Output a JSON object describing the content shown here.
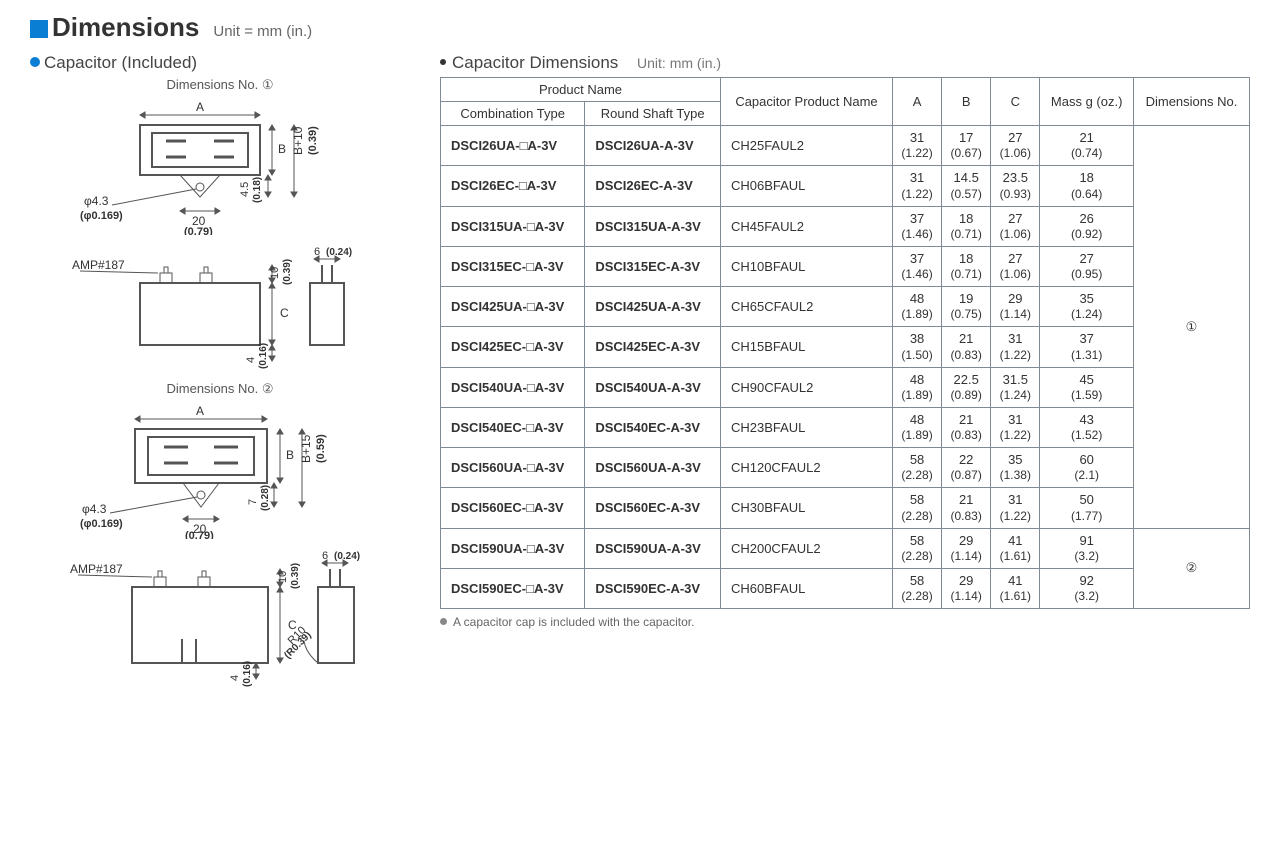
{
  "page": {
    "title": "Dimensions",
    "unit_label": "Unit = mm (in.)"
  },
  "left": {
    "heading": "Capacitor (Included)",
    "dim_label_1": "Dimensions No. ①",
    "dim_label_2": "Dimensions No. ②",
    "diagram1": {
      "A": "A",
      "B": "B",
      "Bplus": "B+10",
      "Bplus_in": "(0.39)",
      "phi": "φ4.3",
      "phi_in": "(φ0.169)",
      "twenty": "20",
      "twenty_in": "(0.79)",
      "four5": "4.5",
      "four5_in": "(0.18)"
    },
    "diagram_side": {
      "amp": "AMP#187",
      "ten": "10",
      "ten_in": "(0.39)",
      "six": "6",
      "six_in": "(0.24)",
      "C": "C",
      "four": "4",
      "four_in": "(0.16)"
    },
    "diagram2": {
      "A": "A",
      "B": "B",
      "Bplus": "B+15",
      "Bplus_in": "(0.59)",
      "phi": "φ4.3",
      "phi_in": "(φ0.169)",
      "twenty": "20",
      "twenty_in": "(0.79)",
      "seven": "7",
      "seven_in": "(0.28)"
    },
    "diagram_side2": {
      "amp": "AMP#187",
      "ten": "10",
      "ten_in": "(0.39)",
      "six": "6",
      "six_in": "(0.24)",
      "C": "C",
      "four": "4",
      "four_in": "(0.16)",
      "R": "R10",
      "R_in": "(R0.39)"
    }
  },
  "right": {
    "heading": "Capacitor Dimensions",
    "unit_label": "Unit: mm (in.)"
  },
  "table": {
    "headers": {
      "pn_group": "Product Name",
      "combo": "Combination Type",
      "round": "Round Shaft Type",
      "cap": "Capacitor Product Name",
      "A": "A",
      "B": "B",
      "C": "C",
      "mass": "Mass g (oz.)",
      "dimno": "Dimensions No."
    },
    "rows": [
      {
        "combo": "DSCI26UA-□A-3V",
        "round": "DSCI26UA-A-3V",
        "cap": "CH25FAUL2",
        "A": {
          "mm": "31",
          "in": "(1.22)"
        },
        "B": {
          "mm": "17",
          "in": "(0.67)"
        },
        "C": {
          "mm": "27",
          "in": "(1.06)"
        },
        "mass": {
          "mm": "21",
          "in": "(0.74)"
        }
      },
      {
        "combo": "DSCI26EC-□A-3V",
        "round": "DSCI26EC-A-3V",
        "cap": "CH06BFAUL",
        "A": {
          "mm": "31",
          "in": "(1.22)"
        },
        "B": {
          "mm": "14.5",
          "in": "(0.57)"
        },
        "C": {
          "mm": "23.5",
          "in": "(0.93)"
        },
        "mass": {
          "mm": "18",
          "in": "(0.64)"
        }
      },
      {
        "combo": "DSCI315UA-□A-3V",
        "round": "DSCI315UA-A-3V",
        "cap": "CH45FAUL2",
        "A": {
          "mm": "37",
          "in": "(1.46)"
        },
        "B": {
          "mm": "18",
          "in": "(0.71)"
        },
        "C": {
          "mm": "27",
          "in": "(1.06)"
        },
        "mass": {
          "mm": "26",
          "in": "(0.92)"
        }
      },
      {
        "combo": "DSCI315EC-□A-3V",
        "round": "DSCI315EC-A-3V",
        "cap": "CH10BFAUL",
        "A": {
          "mm": "37",
          "in": "(1.46)"
        },
        "B": {
          "mm": "18",
          "in": "(0.71)"
        },
        "C": {
          "mm": "27",
          "in": "(1.06)"
        },
        "mass": {
          "mm": "27",
          "in": "(0.95)"
        }
      },
      {
        "combo": "DSCI425UA-□A-3V",
        "round": "DSCI425UA-A-3V",
        "cap": "CH65CFAUL2",
        "A": {
          "mm": "48",
          "in": "(1.89)"
        },
        "B": {
          "mm": "19",
          "in": "(0.75)"
        },
        "C": {
          "mm": "29",
          "in": "(1.14)"
        },
        "mass": {
          "mm": "35",
          "in": "(1.24)"
        }
      },
      {
        "combo": "DSCI425EC-□A-3V",
        "round": "DSCI425EC-A-3V",
        "cap": "CH15BFAUL",
        "A": {
          "mm": "38",
          "in": "(1.50)"
        },
        "B": {
          "mm": "21",
          "in": "(0.83)"
        },
        "C": {
          "mm": "31",
          "in": "(1.22)"
        },
        "mass": {
          "mm": "37",
          "in": "(1.31)"
        }
      },
      {
        "combo": "DSCI540UA-□A-3V",
        "round": "DSCI540UA-A-3V",
        "cap": "CH90CFAUL2",
        "A": {
          "mm": "48",
          "in": "(1.89)"
        },
        "B": {
          "mm": "22.5",
          "in": "(0.89)"
        },
        "C": {
          "mm": "31.5",
          "in": "(1.24)"
        },
        "mass": {
          "mm": "45",
          "in": "(1.59)"
        }
      },
      {
        "combo": "DSCI540EC-□A-3V",
        "round": "DSCI540EC-A-3V",
        "cap": "CH23BFAUL",
        "A": {
          "mm": "48",
          "in": "(1.89)"
        },
        "B": {
          "mm": "21",
          "in": "(0.83)"
        },
        "C": {
          "mm": "31",
          "in": "(1.22)"
        },
        "mass": {
          "mm": "43",
          "in": "(1.52)"
        }
      },
      {
        "combo": "DSCI560UA-□A-3V",
        "round": "DSCI560UA-A-3V",
        "cap": "CH120CFAUL2",
        "A": {
          "mm": "58",
          "in": "(2.28)"
        },
        "B": {
          "mm": "22",
          "in": "(0.87)"
        },
        "C": {
          "mm": "35",
          "in": "(1.38)"
        },
        "mass": {
          "mm": "60",
          "in": "(2.1)"
        }
      },
      {
        "combo": "DSCI560EC-□A-3V",
        "round": "DSCI560EC-A-3V",
        "cap": "CH30BFAUL",
        "A": {
          "mm": "58",
          "in": "(2.28)"
        },
        "B": {
          "mm": "21",
          "in": "(0.83)"
        },
        "C": {
          "mm": "31",
          "in": "(1.22)"
        },
        "mass": {
          "mm": "50",
          "in": "(1.77)"
        }
      },
      {
        "combo": "DSCI590UA-□A-3V",
        "round": "DSCI590UA-A-3V",
        "cap": "CH200CFAUL2",
        "A": {
          "mm": "58",
          "in": "(2.28)"
        },
        "B": {
          "mm": "29",
          "in": "(1.14)"
        },
        "C": {
          "mm": "41",
          "in": "(1.61)"
        },
        "mass": {
          "mm": "91",
          "in": "(3.2)"
        }
      },
      {
        "combo": "DSCI590EC-□A-3V",
        "round": "DSCI590EC-A-3V",
        "cap": "CH60BFAUL",
        "A": {
          "mm": "58",
          "in": "(2.28)"
        },
        "B": {
          "mm": "29",
          "in": "(1.14)"
        },
        "C": {
          "mm": "41",
          "in": "(1.61)"
        },
        "mass": {
          "mm": "92",
          "in": "(3.2)"
        }
      }
    ],
    "dimno_groups": [
      {
        "label": "①",
        "rowspan": 10
      },
      {
        "label": "②",
        "rowspan": 2
      }
    ]
  },
  "footnote": "A capacitor cap is included with the capacitor.",
  "colors": {
    "blue": "#0a7ed3",
    "border": "#7e8a95",
    "text": "#3a3a3a",
    "muted": "#777"
  }
}
